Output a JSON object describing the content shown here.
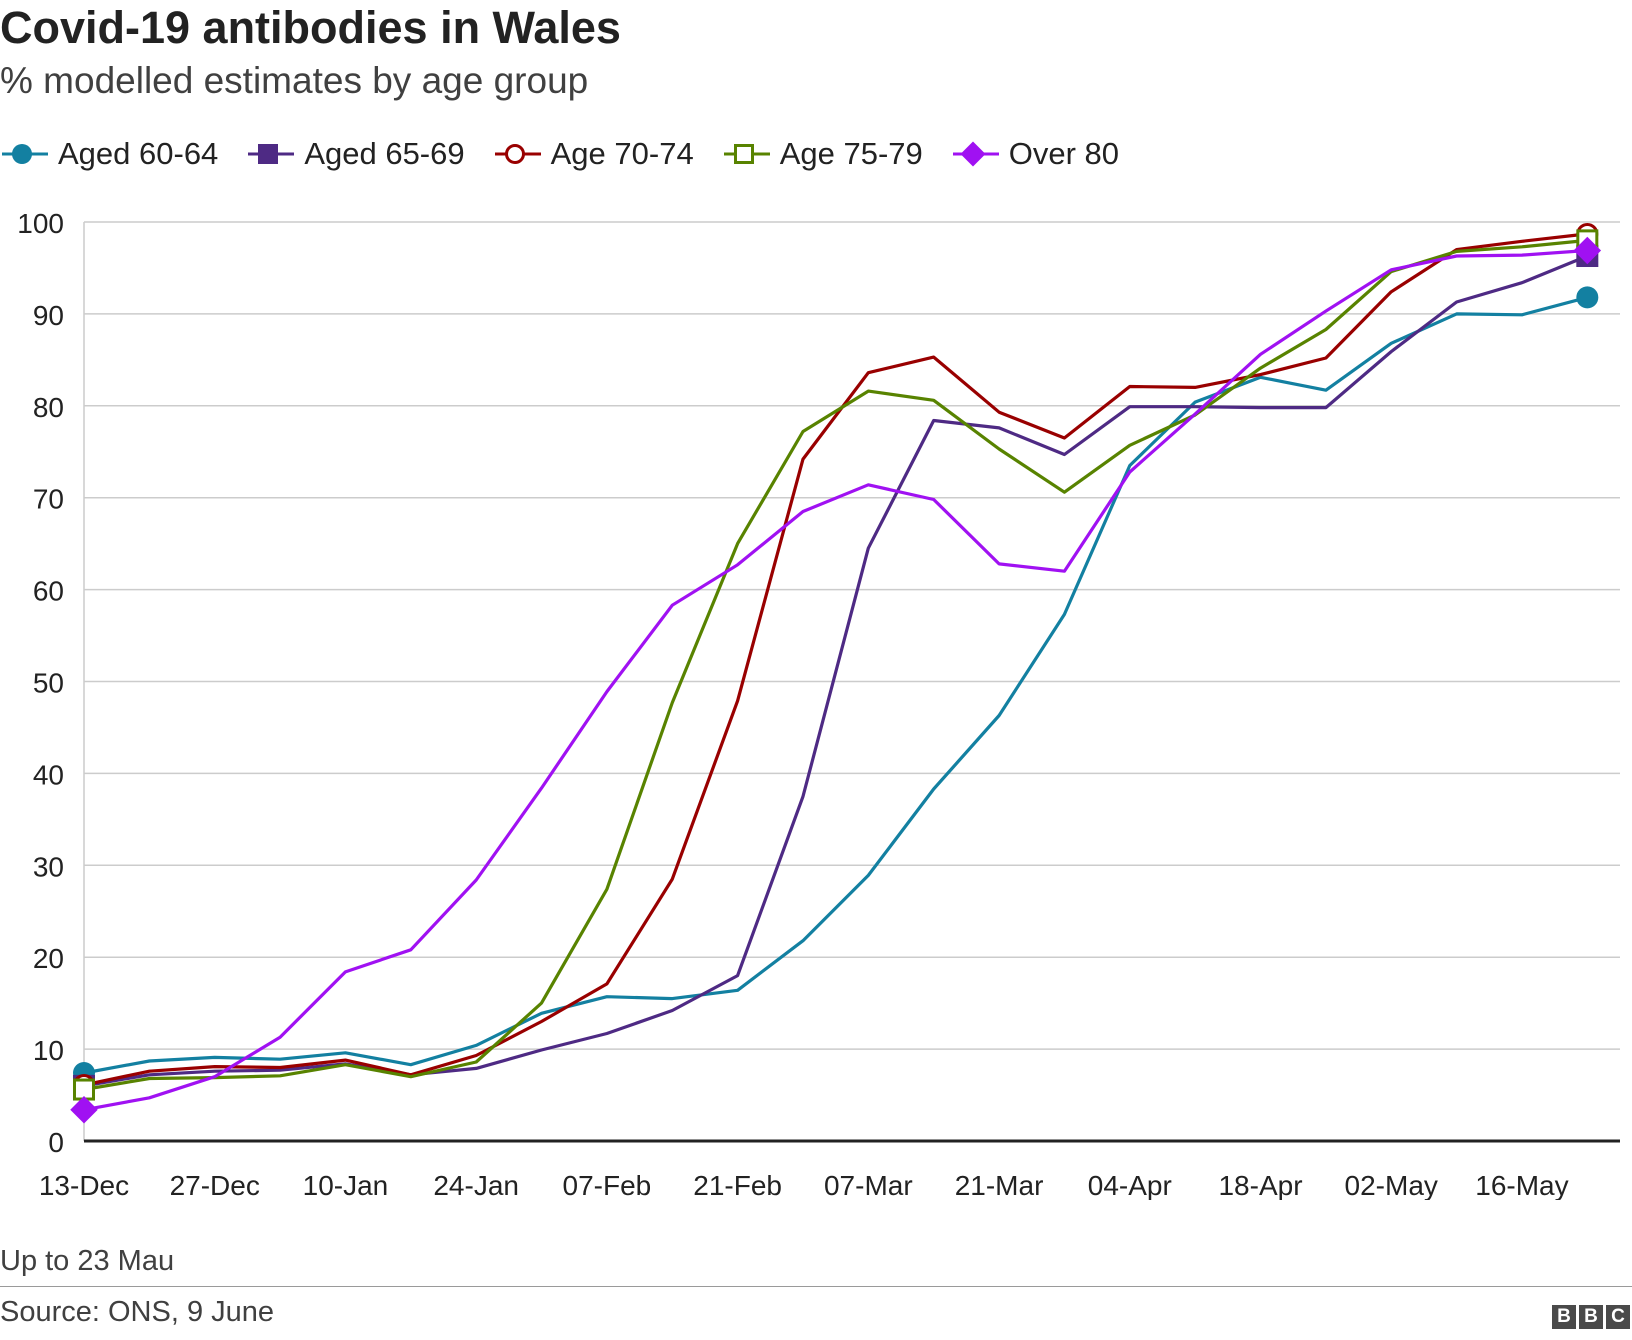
{
  "header": {
    "title": "Covid-19 antibodies in Wales",
    "subtitle": "% modelled estimates by age group"
  },
  "footer": {
    "note": "Up to 23 Mau",
    "source": "Source: ONS, 9 June",
    "logo_letters": [
      "B",
      "B",
      "C"
    ]
  },
  "chart_data": {
    "type": "line",
    "x_labels": [
      "13-Dec",
      "27-Dec",
      "10-Jan",
      "24-Jan",
      "07-Feb",
      "21-Feb",
      "07-Mar",
      "21-Mar",
      "04-Apr",
      "18-Apr",
      "02-May",
      "16-May"
    ],
    "x_points": [
      "13-Dec",
      "20-Dec",
      "27-Dec",
      "03-Jan",
      "10-Jan",
      "17-Jan",
      "24-Jan",
      "31-Jan",
      "07-Feb",
      "14-Feb",
      "21-Feb",
      "28-Feb",
      "07-Mar",
      "14-Mar",
      "21-Mar",
      "28-Mar",
      "04-Apr",
      "11-Apr",
      "18-Apr",
      "25-Apr",
      "02-May",
      "09-May",
      "16-May",
      "23-May"
    ],
    "ylim": [
      0,
      100
    ],
    "yticks": [
      0,
      10,
      20,
      30,
      40,
      50,
      60,
      70,
      80,
      90,
      100
    ],
    "grid": true,
    "legend_position": "top",
    "series": [
      {
        "name": "Aged 60-64",
        "color": "#1380A1",
        "marker": "circle-filled",
        "values": [
          7.4,
          8.7,
          9.1,
          8.9,
          9.6,
          8.3,
          10.4,
          13.9,
          15.7,
          15.5,
          16.4,
          21.8,
          28.9,
          38.3,
          46.3,
          57.3,
          73.5,
          80.4,
          83.1,
          81.7,
          86.8,
          90.0,
          89.9,
          91.8
        ]
      },
      {
        "name": "Aged 65-69",
        "color": "#4E2A84",
        "marker": "square-filled",
        "values": [
          6.0,
          7.2,
          7.6,
          7.7,
          8.4,
          7.2,
          7.9,
          9.9,
          11.7,
          14.2,
          18.0,
          37.5,
          64.5,
          78.4,
          77.6,
          74.7,
          79.9,
          79.9,
          79.8,
          79.8,
          85.9,
          91.3,
          93.4,
          96.3
        ]
      },
      {
        "name": "Age 70-74",
        "color": "#990000",
        "marker": "circle-open",
        "values": [
          6.1,
          7.6,
          8.1,
          8.0,
          8.8,
          7.2,
          9.3,
          13.0,
          17.1,
          28.5,
          47.9,
          74.2,
          83.6,
          85.3,
          79.3,
          76.5,
          82.1,
          82.0,
          83.4,
          85.2,
          92.4,
          97.0,
          97.9,
          98.7
        ]
      },
      {
        "name": "Age 75-79",
        "color": "#588300",
        "marker": "square-open",
        "values": [
          5.6,
          6.8,
          6.9,
          7.1,
          8.3,
          7.0,
          8.6,
          15.0,
          27.4,
          47.7,
          65.0,
          77.2,
          81.6,
          80.6,
          75.3,
          70.6,
          75.7,
          79.0,
          84.1,
          88.3,
          94.6,
          96.8,
          97.3,
          98.0
        ]
      },
      {
        "name": "Over 80",
        "color": "#A011F2",
        "marker": "diamond-filled",
        "values": [
          3.4,
          4.7,
          7.0,
          11.3,
          18.4,
          20.8,
          28.4,
          38.4,
          48.9,
          58.3,
          62.7,
          68.5,
          71.4,
          69.8,
          62.8,
          62.0,
          72.8,
          79.1,
          85.6,
          90.3,
          94.8,
          96.3,
          96.4,
          96.9
        ]
      }
    ]
  }
}
